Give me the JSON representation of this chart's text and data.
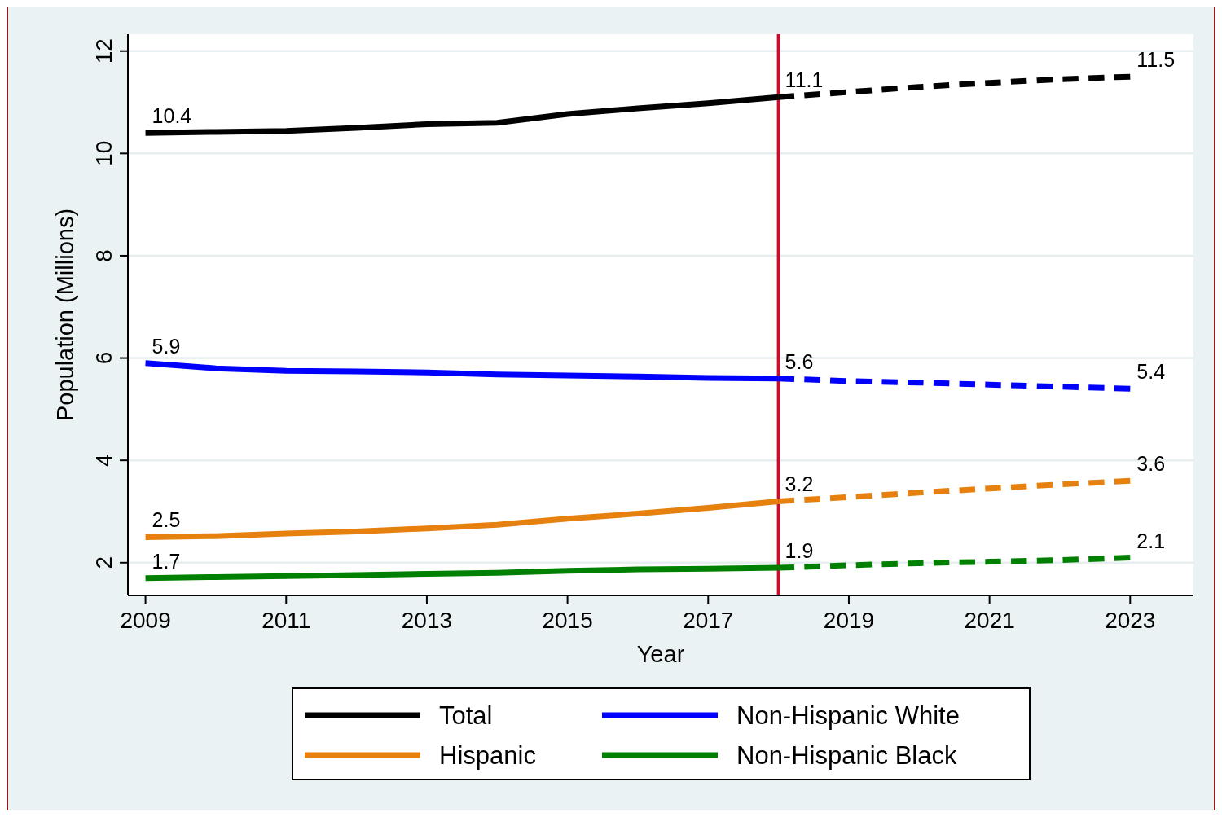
{
  "chart_data": {
    "type": "line",
    "xlabel": "Year",
    "ylabel": "Population (Millions)",
    "x": [
      2009,
      2010,
      2011,
      2012,
      2013,
      2014,
      2015,
      2016,
      2017,
      2018
    ],
    "xlim": [
      2008.75,
      2023.9
    ],
    "xticks": [
      2009,
      2011,
      2013,
      2015,
      2017,
      2019,
      2021,
      2023
    ],
    "ylim": [
      1.36,
      12.33
    ],
    "yticks": [
      2,
      4,
      6,
      8,
      10,
      12
    ],
    "grid": "y",
    "legend": "bottom",
    "line_style": "solid",
    "marker": "none",
    "ref_lines": [
      {
        "axis": "x",
        "value": 2018,
        "color": "#c8102e"
      }
    ],
    "series": [
      {
        "name": "Total",
        "color": "#000000",
        "values": [
          10.4,
          10.42,
          10.44,
          10.5,
          10.57,
          10.6,
          10.77,
          10.88,
          10.98,
          11.1
        ],
        "value_labels": [
          "10.4",
          null,
          null,
          null,
          null,
          null,
          null,
          null,
          null,
          "11.1"
        ]
      },
      {
        "name": "Non-Hispanic White",
        "color": "#0000ff",
        "values": [
          5.9,
          5.8,
          5.75,
          5.74,
          5.72,
          5.68,
          5.66,
          5.64,
          5.61,
          5.6
        ],
        "value_labels": [
          "5.9",
          null,
          null,
          null,
          null,
          null,
          null,
          null,
          null,
          "5.6"
        ]
      },
      {
        "name": "Hispanic",
        "color": "#e6800e",
        "values": [
          2.5,
          2.52,
          2.57,
          2.61,
          2.67,
          2.74,
          2.86,
          2.96,
          3.07,
          3.2
        ],
        "value_labels": [
          "2.5",
          null,
          null,
          null,
          null,
          null,
          null,
          null,
          null,
          "3.2"
        ]
      },
      {
        "name": "Non-Hispanic Black",
        "color": "#008000",
        "values": [
          1.7,
          1.72,
          1.74,
          1.76,
          1.78,
          1.8,
          1.84,
          1.87,
          1.88,
          1.9
        ],
        "value_labels": [
          "1.7",
          null,
          null,
          null,
          null,
          null,
          null,
          null,
          null,
          "1.9"
        ]
      },
      {
        "color": "#000000",
        "line_style": "dashed",
        "x": [
          2018,
          2019,
          2020,
          2021,
          2022,
          2023
        ],
        "values": [
          11.1,
          11.2,
          11.3,
          11.38,
          11.45,
          11.5
        ],
        "value_labels": [
          null,
          null,
          null,
          null,
          null,
          "11.5"
        ]
      },
      {
        "color": "#0000ff",
        "line_style": "dashed",
        "x": [
          2018,
          2019,
          2020,
          2021,
          2022,
          2023
        ],
        "values": [
          5.6,
          5.55,
          5.52,
          5.48,
          5.44,
          5.4
        ],
        "value_labels": [
          null,
          null,
          null,
          null,
          null,
          "5.4"
        ]
      },
      {
        "color": "#e6800e",
        "line_style": "dashed",
        "x": [
          2018,
          2019,
          2020,
          2021,
          2022,
          2023
        ],
        "values": [
          3.2,
          3.28,
          3.37,
          3.45,
          3.53,
          3.6
        ],
        "value_labels": [
          null,
          null,
          null,
          null,
          null,
          "3.6"
        ]
      },
      {
        "color": "#008000",
        "line_style": "dashed",
        "x": [
          2018,
          2019,
          2020,
          2021,
          2022,
          2023
        ],
        "values": [
          1.9,
          1.95,
          1.99,
          2.02,
          2.05,
          2.1
        ],
        "value_labels": [
          null,
          null,
          null,
          null,
          null,
          "2.1"
        ]
      }
    ]
  }
}
